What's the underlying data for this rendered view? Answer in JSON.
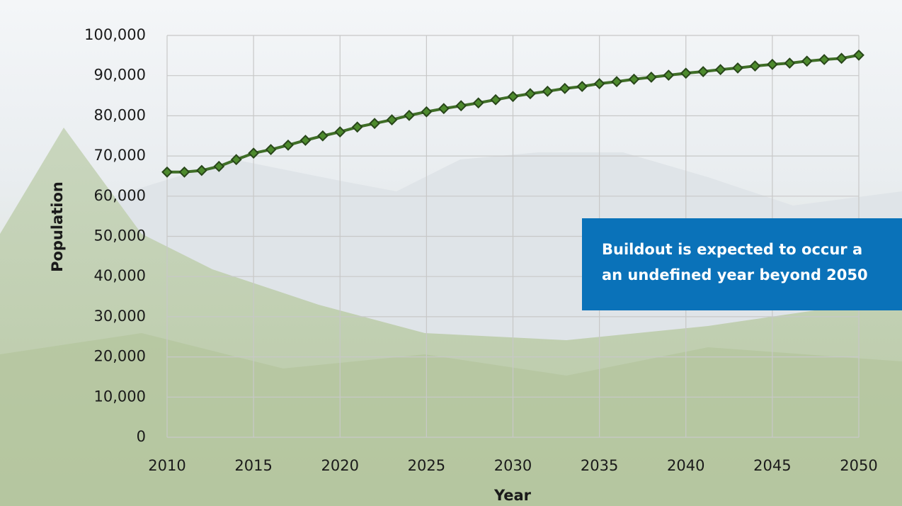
{
  "chart_data": {
    "type": "line",
    "x_label": "Year",
    "y_label": "Population",
    "x": [
      2010,
      2011,
      2012,
      2013,
      2014,
      2015,
      2016,
      2017,
      2018,
      2019,
      2020,
      2021,
      2022,
      2023,
      2024,
      2025,
      2026,
      2027,
      2028,
      2029,
      2030,
      2031,
      2032,
      2033,
      2034,
      2035,
      2036,
      2037,
      2038,
      2039,
      2040,
      2041,
      2042,
      2043,
      2044,
      2045,
      2046,
      2047,
      2048,
      2049,
      2050
    ],
    "series": [
      {
        "name": "Population",
        "color": "#3f6e27",
        "values": [
          66000,
          66000,
          66400,
          67400,
          69100,
          70700,
          71600,
          72700,
          73900,
          75000,
          76000,
          77200,
          78100,
          79000,
          80100,
          81000,
          81800,
          82500,
          83200,
          84000,
          84800,
          85500,
          86100,
          86800,
          87300,
          88000,
          88500,
          89100,
          89600,
          90100,
          90600,
          91000,
          91500,
          91900,
          92400,
          92800,
          93100,
          93600,
          94000,
          94300,
          95100
        ]
      }
    ],
    "xlim": [
      2010,
      2050
    ],
    "xticks": [
      2010,
      2015,
      2020,
      2025,
      2030,
      2035,
      2040,
      2045,
      2050
    ],
    "ylim": [
      0,
      100000
    ],
    "yticks": [
      0,
      {
        "value": 10000,
        "label": "10,000"
      },
      {
        "value": 20000,
        "label": "20,000"
      },
      {
        "value": 30000,
        "label": "30,000"
      },
      {
        "value": 40000,
        "label": "40,000"
      },
      {
        "value": 50000,
        "label": "50,000"
      },
      {
        "value": 60000,
        "label": "60,000"
      },
      {
        "value": 70000,
        "label": "70,000"
      },
      {
        "value": 80000,
        "label": "80,000"
      },
      {
        "value": 90000,
        "label": "90,000"
      },
      {
        "value": 100000,
        "label": "100,000"
      }
    ],
    "grid": true,
    "annotation": [
      "Buildout is expected to occur a",
      "an undefined year beyond 2050"
    ]
  }
}
